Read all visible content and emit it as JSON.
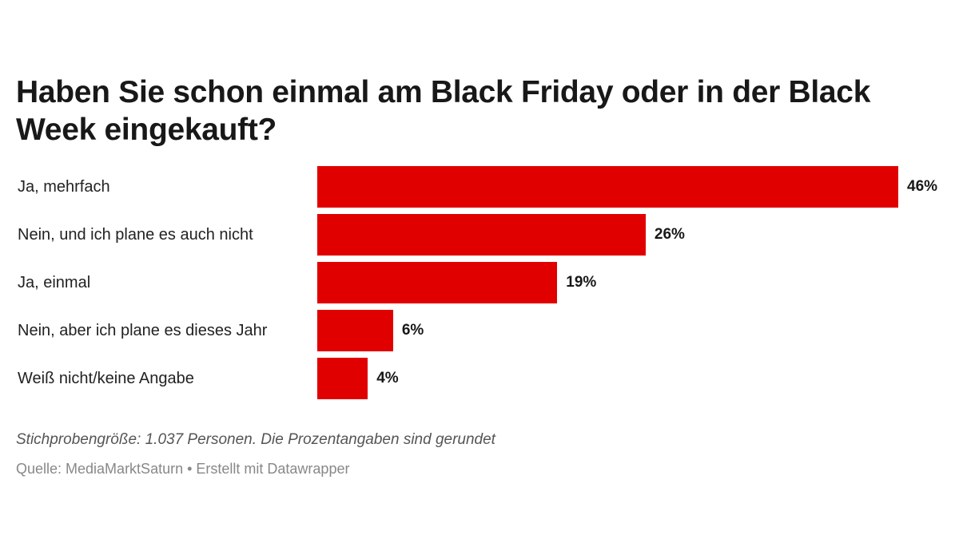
{
  "chart_data": {
    "type": "bar",
    "orientation": "horizontal",
    "title": "Haben Sie schon einmal am Black Friday oder in der Black Week eingekauft?",
    "categories": [
      "Ja, mehrfach",
      "Nein, und ich plane es auch nicht",
      "Ja, einmal",
      "Nein, aber ich plane es dieses Jahr",
      "Weiß nicht/keine Angabe"
    ],
    "values": [
      46,
      26,
      19,
      6,
      4
    ],
    "value_labels": [
      "46%",
      "26%",
      "19%",
      "6%",
      "4%"
    ],
    "unit": "%",
    "xlim": [
      0,
      46
    ],
    "grid": false,
    "bar_color": "#e00000",
    "notes": "Stichprobengröße: 1.037 Personen. Die Prozentangaben sind gerundet",
    "source": "Quelle: MediaMarktSaturn • Erstellt mit Datawrapper"
  }
}
